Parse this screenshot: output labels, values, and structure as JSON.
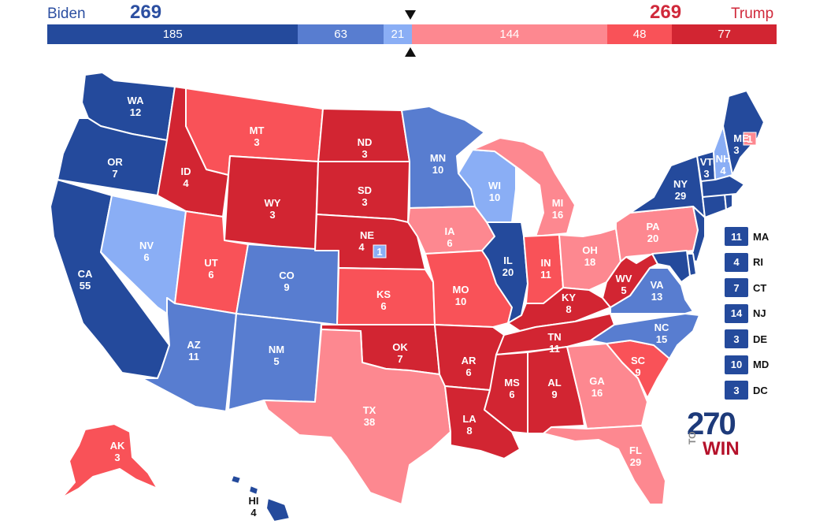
{
  "header": {
    "left_name": "Biden",
    "left_total": "269",
    "right_name": "Trump",
    "right_total": "269",
    "left_color": "#2c4fa1",
    "right_color": "#d0293b"
  },
  "tally": [
    {
      "label": "185",
      "value": 185,
      "color": "#244a9c"
    },
    {
      "label": "63",
      "value": 63,
      "color": "#587dd0"
    },
    {
      "label": "21",
      "value": 21,
      "color": "#8aaef5"
    },
    {
      "label": "144",
      "value": 144,
      "color": "#fd8890"
    },
    {
      "label": "48",
      "value": 48,
      "color": "#f95258"
    },
    {
      "label": "77",
      "value": 77,
      "color": "#d22532"
    }
  ],
  "legend_colors": {
    "safe_d": "#244a9c",
    "likely_d": "#587dd0",
    "lean_d": "#8aaef5",
    "lean_r": "#fd8890",
    "likely_r": "#f95258",
    "safe_r": "#d22532"
  },
  "states": {
    "WA": {
      "abbr": "WA",
      "ev": "12"
    },
    "OR": {
      "abbr": "OR",
      "ev": "7"
    },
    "CA": {
      "abbr": "CA",
      "ev": "55"
    },
    "NV": {
      "abbr": "NV",
      "ev": "6"
    },
    "ID": {
      "abbr": "ID",
      "ev": "4"
    },
    "MT": {
      "abbr": "MT",
      "ev": "3"
    },
    "WY": {
      "abbr": "WY",
      "ev": "3"
    },
    "UT": {
      "abbr": "UT",
      "ev": "6"
    },
    "AZ": {
      "abbr": "AZ",
      "ev": "11"
    },
    "CO": {
      "abbr": "CO",
      "ev": "9"
    },
    "NM": {
      "abbr": "NM",
      "ev": "5"
    },
    "ND": {
      "abbr": "ND",
      "ev": "3"
    },
    "SD": {
      "abbr": "SD",
      "ev": "3"
    },
    "NE": {
      "abbr": "NE",
      "ev": "4",
      "district": "1"
    },
    "KS": {
      "abbr": "KS",
      "ev": "6"
    },
    "OK": {
      "abbr": "OK",
      "ev": "7"
    },
    "TX": {
      "abbr": "TX",
      "ev": "38"
    },
    "MN": {
      "abbr": "MN",
      "ev": "10"
    },
    "IA": {
      "abbr": "IA",
      "ev": "6"
    },
    "MO": {
      "abbr": "MO",
      "ev": "10"
    },
    "AR": {
      "abbr": "AR",
      "ev": "6"
    },
    "LA": {
      "abbr": "LA",
      "ev": "8"
    },
    "WI": {
      "abbr": "WI",
      "ev": "10"
    },
    "IL": {
      "abbr": "IL",
      "ev": "20"
    },
    "MI": {
      "abbr": "MI",
      "ev": "16"
    },
    "IN": {
      "abbr": "IN",
      "ev": "11"
    },
    "OH": {
      "abbr": "OH",
      "ev": "18"
    },
    "KY": {
      "abbr": "KY",
      "ev": "8"
    },
    "TN": {
      "abbr": "TN",
      "ev": "11"
    },
    "MS": {
      "abbr": "MS",
      "ev": "6"
    },
    "AL": {
      "abbr": "AL",
      "ev": "9"
    },
    "GA": {
      "abbr": "GA",
      "ev": "16"
    },
    "FL": {
      "abbr": "FL",
      "ev": "29"
    },
    "SC": {
      "abbr": "SC",
      "ev": "9"
    },
    "NC": {
      "abbr": "NC",
      "ev": "15"
    },
    "VA": {
      "abbr": "VA",
      "ev": "13"
    },
    "WV": {
      "abbr": "WV",
      "ev": "5"
    },
    "PA": {
      "abbr": "PA",
      "ev": "20"
    },
    "NY": {
      "abbr": "NY",
      "ev": "29"
    },
    "VT": {
      "abbr": "VT",
      "ev": "3"
    },
    "NH": {
      "abbr": "NH",
      "ev": "4"
    },
    "ME": {
      "abbr": "ME",
      "ev": "3",
      "district": "1"
    },
    "AK": {
      "abbr": "AK",
      "ev": "3"
    },
    "HI": {
      "abbr": "HI",
      "ev": "4"
    }
  },
  "small_states": [
    {
      "ev": "11",
      "abbr": "MA"
    },
    {
      "ev": "4",
      "abbr": "RI"
    },
    {
      "ev": "7",
      "abbr": "CT"
    },
    {
      "ev": "14",
      "abbr": "NJ"
    },
    {
      "ev": "3",
      "abbr": "DE"
    },
    {
      "ev": "10",
      "abbr": "MD"
    },
    {
      "ev": "3",
      "abbr": "DC"
    }
  ],
  "logo": {
    "number": "270",
    "to": "TO",
    "win": "WIN"
  }
}
